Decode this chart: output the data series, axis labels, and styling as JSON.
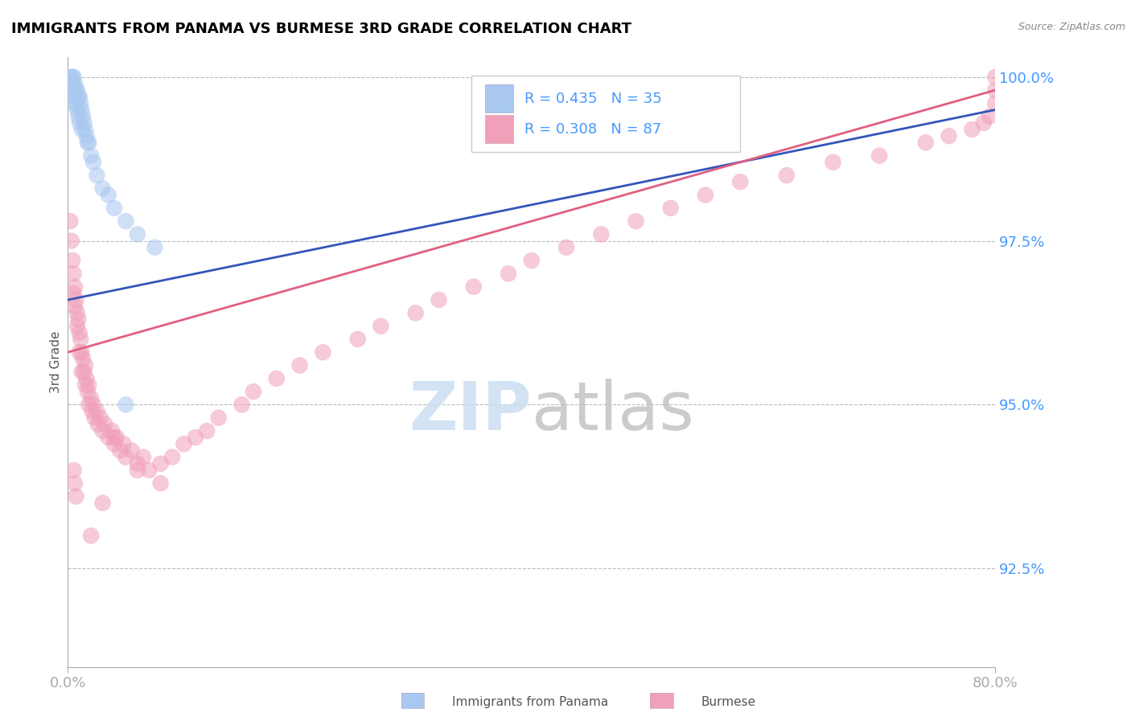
{
  "title": "IMMIGRANTS FROM PANAMA VS BURMESE 3RD GRADE CORRELATION CHART",
  "source_text": "Source: ZipAtlas.com",
  "ylabel": "3rd Grade",
  "xlim": [
    0.0,
    0.8
  ],
  "ylim": [
    0.91,
    1.003
  ],
  "xticks": [
    0.0,
    0.8
  ],
  "xtick_labels": [
    "0.0%",
    "80.0%"
  ],
  "ytick_vals": [
    0.925,
    0.95,
    0.975,
    1.0
  ],
  "ytick_labels": [
    "92.5%",
    "95.0%",
    "97.5%",
    "100.0%"
  ],
  "blue_R": 0.435,
  "blue_N": 35,
  "pink_R": 0.308,
  "pink_N": 87,
  "blue_color": "#A8C8F0",
  "pink_color": "#F0A0B8",
  "blue_line_color": "#3355BB",
  "pink_line_color": "#E06080",
  "legend_label_blue": "Immigrants from Panama",
  "legend_label_pink": "Burmese",
  "blue_scatter_x": [
    0.003,
    0.004,
    0.004,
    0.005,
    0.005,
    0.005,
    0.006,
    0.006,
    0.007,
    0.007,
    0.008,
    0.008,
    0.009,
    0.009,
    0.01,
    0.01,
    0.011,
    0.012,
    0.012,
    0.013,
    0.014,
    0.015,
    0.016,
    0.017,
    0.018,
    0.02,
    0.022,
    0.025,
    0.03,
    0.035,
    0.04,
    0.05,
    0.06,
    0.075,
    0.05
  ],
  "blue_scatter_y": [
    1.0,
    1.0,
    0.999,
    1.0,
    0.998,
    0.996,
    0.999,
    0.997,
    0.998,
    0.996,
    0.998,
    0.995,
    0.997,
    0.994,
    0.997,
    0.993,
    0.996,
    0.995,
    0.992,
    0.994,
    0.993,
    0.992,
    0.991,
    0.99,
    0.99,
    0.988,
    0.987,
    0.985,
    0.983,
    0.982,
    0.98,
    0.978,
    0.976,
    0.974,
    0.95
  ],
  "pink_scatter_x": [
    0.002,
    0.003,
    0.004,
    0.005,
    0.005,
    0.006,
    0.006,
    0.007,
    0.008,
    0.008,
    0.009,
    0.01,
    0.01,
    0.011,
    0.012,
    0.012,
    0.013,
    0.014,
    0.015,
    0.015,
    0.016,
    0.017,
    0.018,
    0.018,
    0.02,
    0.021,
    0.022,
    0.023,
    0.025,
    0.026,
    0.028,
    0.03,
    0.032,
    0.035,
    0.038,
    0.04,
    0.042,
    0.045,
    0.048,
    0.05,
    0.055,
    0.06,
    0.065,
    0.07,
    0.08,
    0.09,
    0.1,
    0.11,
    0.12,
    0.13,
    0.15,
    0.16,
    0.18,
    0.2,
    0.22,
    0.25,
    0.27,
    0.3,
    0.32,
    0.35,
    0.38,
    0.4,
    0.43,
    0.46,
    0.49,
    0.52,
    0.55,
    0.58,
    0.62,
    0.66,
    0.7,
    0.74,
    0.76,
    0.78,
    0.79,
    0.795,
    0.8,
    0.8,
    0.8,
    0.005,
    0.006,
    0.007,
    0.02,
    0.03,
    0.04,
    0.06,
    0.08
  ],
  "pink_scatter_y": [
    0.978,
    0.975,
    0.972,
    0.97,
    0.967,
    0.968,
    0.965,
    0.966,
    0.964,
    0.962,
    0.963,
    0.961,
    0.958,
    0.96,
    0.958,
    0.955,
    0.957,
    0.955,
    0.956,
    0.953,
    0.954,
    0.952,
    0.953,
    0.95,
    0.951,
    0.949,
    0.95,
    0.948,
    0.949,
    0.947,
    0.948,
    0.946,
    0.947,
    0.945,
    0.946,
    0.944,
    0.945,
    0.943,
    0.944,
    0.942,
    0.943,
    0.941,
    0.942,
    0.94,
    0.941,
    0.942,
    0.944,
    0.945,
    0.946,
    0.948,
    0.95,
    0.952,
    0.954,
    0.956,
    0.958,
    0.96,
    0.962,
    0.964,
    0.966,
    0.968,
    0.97,
    0.972,
    0.974,
    0.976,
    0.978,
    0.98,
    0.982,
    0.984,
    0.985,
    0.987,
    0.988,
    0.99,
    0.991,
    0.992,
    0.993,
    0.994,
    0.996,
    0.998,
    1.0,
    0.94,
    0.938,
    0.936,
    0.93,
    0.935,
    0.945,
    0.94,
    0.938
  ]
}
